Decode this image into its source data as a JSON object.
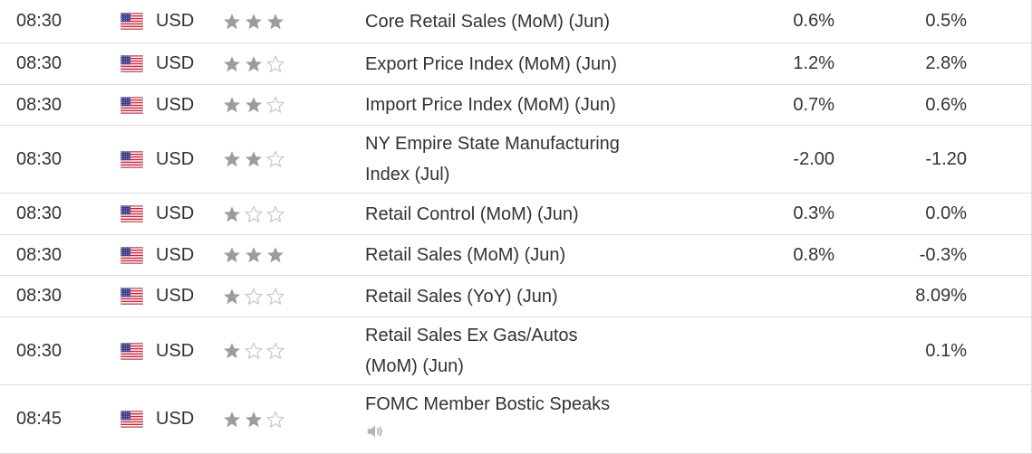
{
  "rows": [
    {
      "time": "08:30",
      "currency": "USD",
      "stars": 3,
      "event": "Core Retail Sales (MoM) (Jun)",
      "actual": "0.6%",
      "forecast": "0.5%"
    },
    {
      "time": "08:30",
      "currency": "USD",
      "stars": 2,
      "event": "Export Price Index (MoM) (Jun)",
      "actual": "1.2%",
      "forecast": "2.8%"
    },
    {
      "time": "08:30",
      "currency": "USD",
      "stars": 2,
      "event": "Import Price Index (MoM) (Jun)",
      "actual": "0.7%",
      "forecast": "0.6%"
    },
    {
      "time": "08:30",
      "currency": "USD",
      "stars": 2,
      "event_lines": [
        "NY Empire State Manufacturing",
        "Index (Jul)"
      ],
      "actual": "-2.00",
      "forecast": "-1.20"
    },
    {
      "time": "08:30",
      "currency": "USD",
      "stars": 1,
      "event": "Retail Control (MoM) (Jun)",
      "actual": "0.3%",
      "forecast": "0.0%"
    },
    {
      "time": "08:30",
      "currency": "USD",
      "stars": 3,
      "event": "Retail Sales (MoM) (Jun)",
      "actual": "0.8%",
      "forecast": "-0.3%"
    },
    {
      "time": "08:30",
      "currency": "USD",
      "stars": 1,
      "event": "Retail Sales (YoY) (Jun)",
      "actual": "",
      "forecast": "8.09%"
    },
    {
      "time": "08:30",
      "currency": "USD",
      "stars": 1,
      "event_lines": [
        "Retail Sales Ex Gas/Autos",
        "(MoM) (Jun)"
      ],
      "actual": "",
      "forecast": "0.1%"
    },
    {
      "time": "08:45",
      "currency": "USD",
      "stars": 2,
      "event": "FOMC Member Bostic Speaks",
      "actual": "",
      "forecast": "",
      "speech": true
    }
  ],
  "colors": {
    "star_filled": "#9c9c9c",
    "star_empty": "#c8c8c8",
    "row_border": "#dcdcdc",
    "text": "#333333"
  },
  "icons": {
    "flag": "us-flag-icon",
    "star": "star-icon",
    "speech": "speaker-icon"
  }
}
